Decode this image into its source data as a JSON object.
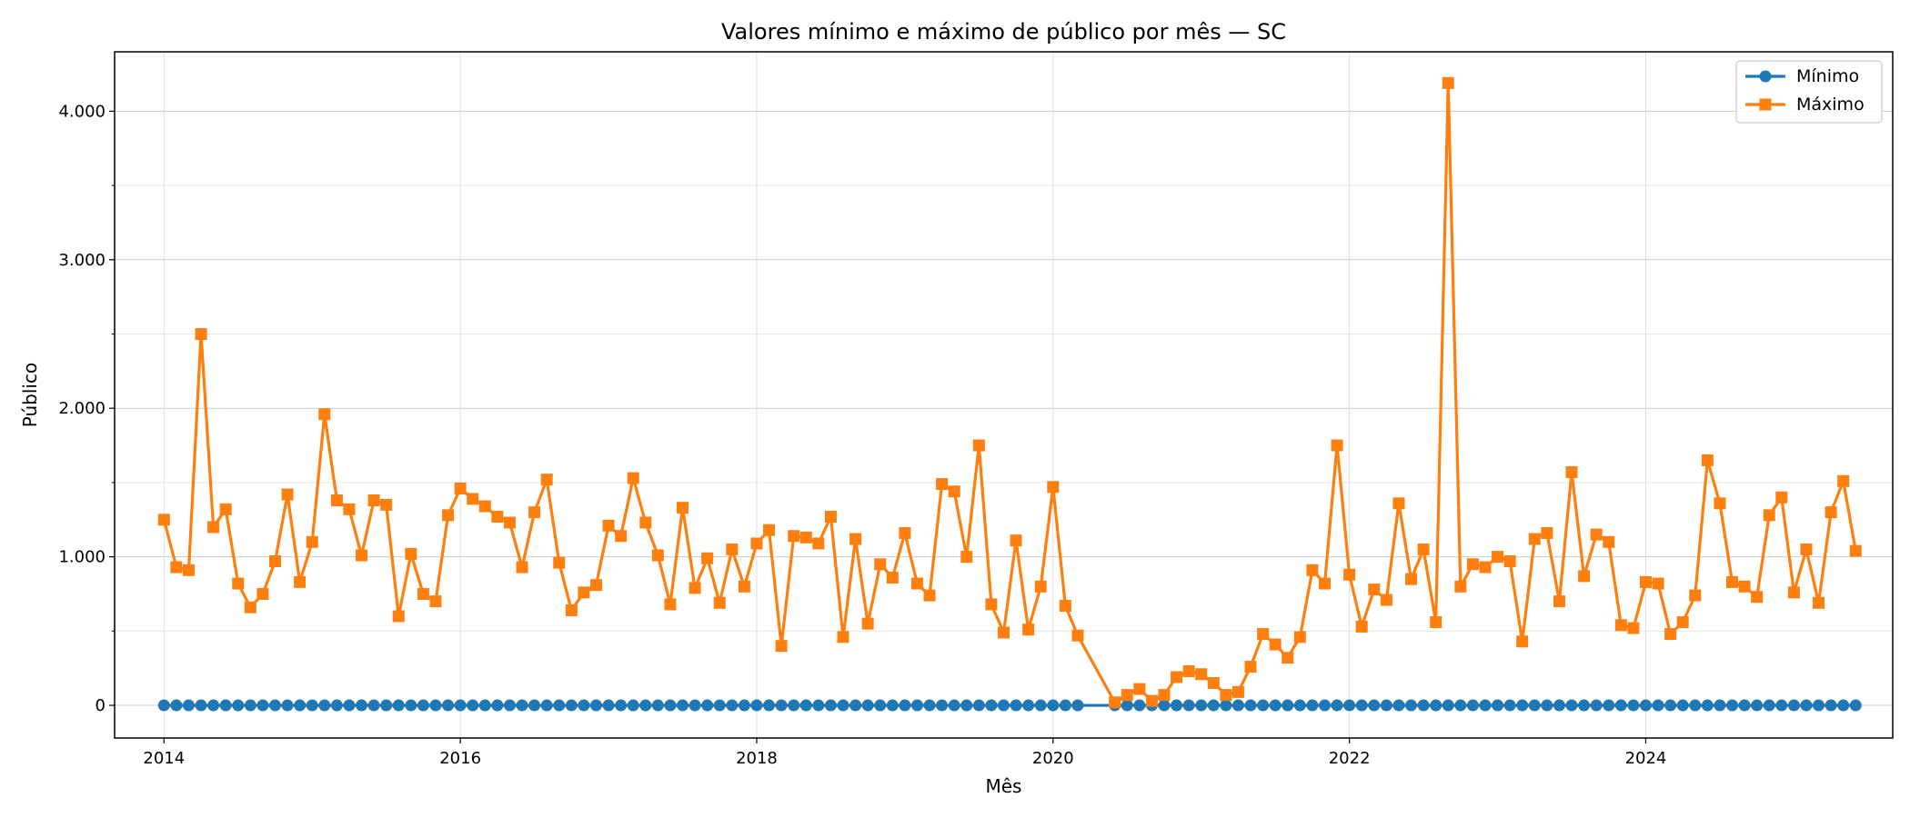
{
  "chart_data": {
    "type": "line",
    "title": "Valores mínimo e máximo de público por mês — SC",
    "xlabel": "Mês",
    "ylabel": "Público",
    "xlim": [
      "2013-09-01",
      "2025-09-01"
    ],
    "ylim": [
      -220,
      4400
    ],
    "x_ticks": [
      "2014",
      "2016",
      "2018",
      "2020",
      "2022",
      "2024"
    ],
    "x_tick_values": [
      "2014-01",
      "2016-01",
      "2018-01",
      "2020-01",
      "2022-01",
      "2024-01"
    ],
    "y_ticks": [
      0,
      1000,
      2000,
      3000,
      4000
    ],
    "y_tick_labels": [
      "0",
      "1.000",
      "2.000",
      "3.000",
      "4.000"
    ],
    "grid": true,
    "legend_position": "top-right",
    "x_start": "2014-01",
    "x_end": "2025-06",
    "series": [
      {
        "name": "Mínimo",
        "color": "#1f77b4",
        "marker": "circle",
        "values": [
          0,
          0,
          0,
          0,
          0,
          0,
          0,
          0,
          0,
          0,
          0,
          0,
          0,
          0,
          0,
          0,
          0,
          0,
          0,
          0,
          0,
          0,
          0,
          0,
          0,
          0,
          0,
          0,
          0,
          0,
          0,
          0,
          0,
          0,
          0,
          0,
          0,
          0,
          0,
          0,
          0,
          0,
          0,
          0,
          0,
          0,
          0,
          0,
          0,
          0,
          0,
          0,
          0,
          0,
          0,
          0,
          0,
          0,
          0,
          0,
          0,
          0,
          0,
          0,
          0,
          0,
          0,
          0,
          0,
          0,
          0,
          0,
          0,
          0,
          0,
          null,
          null,
          0,
          0,
          0,
          0,
          0,
          0,
          0,
          0,
          0,
          0,
          0,
          0,
          0,
          0,
          0,
          0,
          0,
          0,
          0,
          0,
          0,
          0,
          0,
          0,
          0,
          0,
          0,
          0,
          0,
          0,
          0,
          0,
          0,
          0,
          0,
          0,
          0,
          0,
          0,
          0,
          0,
          0,
          0,
          0,
          0,
          0,
          0,
          0,
          0,
          0,
          0,
          0,
          0,
          0,
          0,
          0,
          0,
          0,
          0,
          0,
          0
        ]
      },
      {
        "name": "Máximo",
        "color": "#ff7f0e",
        "marker": "square",
        "values": [
          1250,
          930,
          910,
          2500,
          1200,
          1320,
          820,
          660,
          750,
          970,
          1420,
          830,
          1100,
          1960,
          1380,
          1320,
          1010,
          1380,
          1350,
          600,
          1020,
          750,
          700,
          1280,
          1460,
          1390,
          1340,
          1270,
          1230,
          930,
          1300,
          1520,
          960,
          640,
          760,
          810,
          1210,
          1140,
          1530,
          1230,
          1010,
          680,
          1330,
          790,
          990,
          690,
          1050,
          800,
          1090,
          1180,
          400,
          1140,
          1130,
          1090,
          1270,
          460,
          1120,
          550,
          950,
          860,
          1160,
          820,
          740,
          1490,
          1440,
          1000,
          1750,
          680,
          490,
          1110,
          510,
          800,
          1470,
          670,
          470,
          null,
          null,
          20,
          70,
          110,
          30,
          70,
          190,
          230,
          210,
          150,
          70,
          90,
          260,
          480,
          410,
          320,
          460,
          910,
          820,
          1750,
          880,
          530,
          780,
          710,
          1360,
          850,
          1050,
          560,
          4190,
          800,
          950,
          930,
          1000,
          970,
          430,
          1120,
          1160,
          700,
          1570,
          870,
          1150,
          1100,
          540,
          520,
          830,
          820,
          480,
          560,
          740,
          1650,
          1360,
          830,
          800,
          730,
          1280,
          1400,
          760,
          1050,
          690,
          1300,
          1510,
          1040
        ]
      }
    ]
  }
}
